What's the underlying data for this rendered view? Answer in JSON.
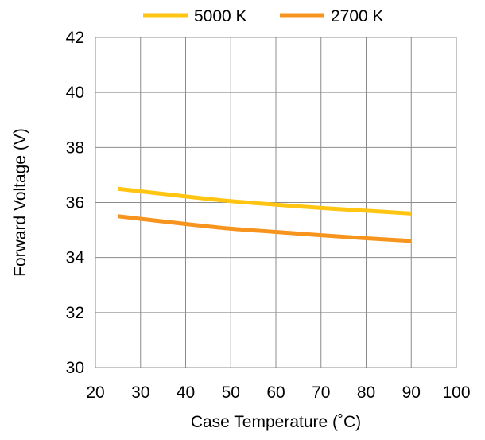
{
  "chart_data": {
    "type": "line",
    "title": "",
    "xlabel": "Case Temperature (˚C)",
    "ylabel": "Forward Voltage (V)",
    "xlim": [
      20,
      100
    ],
    "ylim": [
      30,
      42
    ],
    "xticks": [
      20,
      30,
      40,
      50,
      60,
      70,
      80,
      90,
      100
    ],
    "yticks": [
      30,
      32,
      34,
      36,
      38,
      40,
      42
    ],
    "x_tick_labels": [
      "20",
      "30",
      "40",
      "50",
      "60",
      "70",
      "80",
      "90",
      "100"
    ],
    "y_tick_labels": [
      "30",
      "32",
      "34",
      "36",
      "38",
      "40",
      "42"
    ],
    "grid": true,
    "legend_position": "top",
    "series": [
      {
        "name": "5000 K",
        "color": "#FFC512",
        "x": [
          25,
          40,
          50,
          60,
          70,
          80,
          90
        ],
        "y": [
          36.5,
          36.22,
          36.05,
          35.92,
          35.8,
          35.7,
          35.6
        ]
      },
      {
        "name": "2700 K",
        "color": "#F7941D",
        "x": [
          25,
          40,
          50,
          60,
          70,
          80,
          90
        ],
        "y": [
          35.5,
          35.22,
          35.05,
          34.93,
          34.81,
          34.7,
          34.6
        ]
      }
    ]
  }
}
